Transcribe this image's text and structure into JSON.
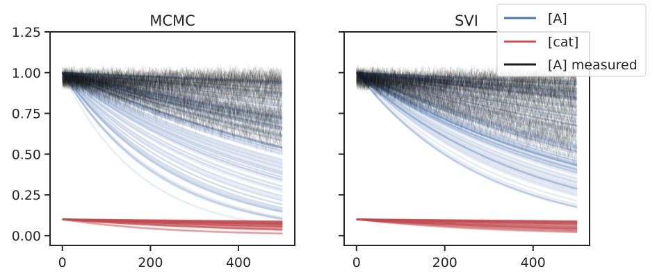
{
  "chart_data": [
    {
      "type": "line",
      "title": "MCMC",
      "xlabel": "",
      "ylabel": "",
      "xlim": [
        -28,
        528
      ],
      "ylim": [
        -0.06,
        1.25
      ],
      "x_ticks": [
        0,
        200,
        400
      ],
      "x_tick_labels": [
        "0",
        "200",
        "400"
      ],
      "y_ticks": [
        0.0,
        0.25,
        0.5,
        0.75,
        1.0,
        1.25
      ],
      "y_tick_labels": [
        "0.00",
        "0.25",
        "0.50",
        "0.75",
        "1.00",
        "1.25"
      ],
      "time_range": [
        0,
        500
      ],
      "series": [
        {
          "name": "[A] measured",
          "kind": "noisy_decay",
          "start": 0.97,
          "noise": 0.05,
          "end_values_range": [
            0.55,
            0.98
          ]
        },
        {
          "name": "[A]",
          "kind": "decay",
          "start": 1.0,
          "end_values_range": [
            0.05,
            0.95
          ]
        },
        {
          "name": "[cat]",
          "kind": "flat",
          "start": 0.1,
          "end_values_range": [
            0.0,
            0.09
          ]
        }
      ]
    },
    {
      "type": "line",
      "title": "SVI",
      "xlabel": "",
      "ylabel": "",
      "xlim": [
        -28,
        528
      ],
      "ylim": [
        -0.06,
        1.25
      ],
      "x_ticks": [
        0,
        200,
        400
      ],
      "x_tick_labels": [
        "0",
        "200",
        "400"
      ],
      "y_ticks": [
        0.0,
        0.25,
        0.5,
        0.75,
        1.0,
        1.25
      ],
      "y_tick_labels": [
        "",
        "",
        "",
        "",
        "",
        ""
      ],
      "time_range": [
        0,
        500
      ],
      "series": [
        {
          "name": "[A] measured",
          "kind": "noisy_decay",
          "start": 0.97,
          "noise": 0.05,
          "end_values_range": [
            0.5,
            0.98
          ]
        },
        {
          "name": "[A]",
          "kind": "decay",
          "start": 1.0,
          "end_values_range": [
            0.15,
            0.95
          ]
        },
        {
          "name": "[cat]",
          "kind": "flat",
          "start": 0.1,
          "end_values_range": [
            0.0,
            0.09
          ]
        }
      ]
    }
  ],
  "legend": {
    "placement": "top-right",
    "items": [
      {
        "label": "[A]",
        "color": "#4c72b0"
      },
      {
        "label": "[cat]",
        "color": "#c44e52"
      },
      {
        "label": "[A] measured",
        "color": "#1a1a1a"
      }
    ]
  },
  "colors": {
    "axis": "#262626",
    "trace_A": "#4c72b0",
    "trace_cat": "#c44e52",
    "measured": "#1a1a1a",
    "background": "#ffffff"
  }
}
